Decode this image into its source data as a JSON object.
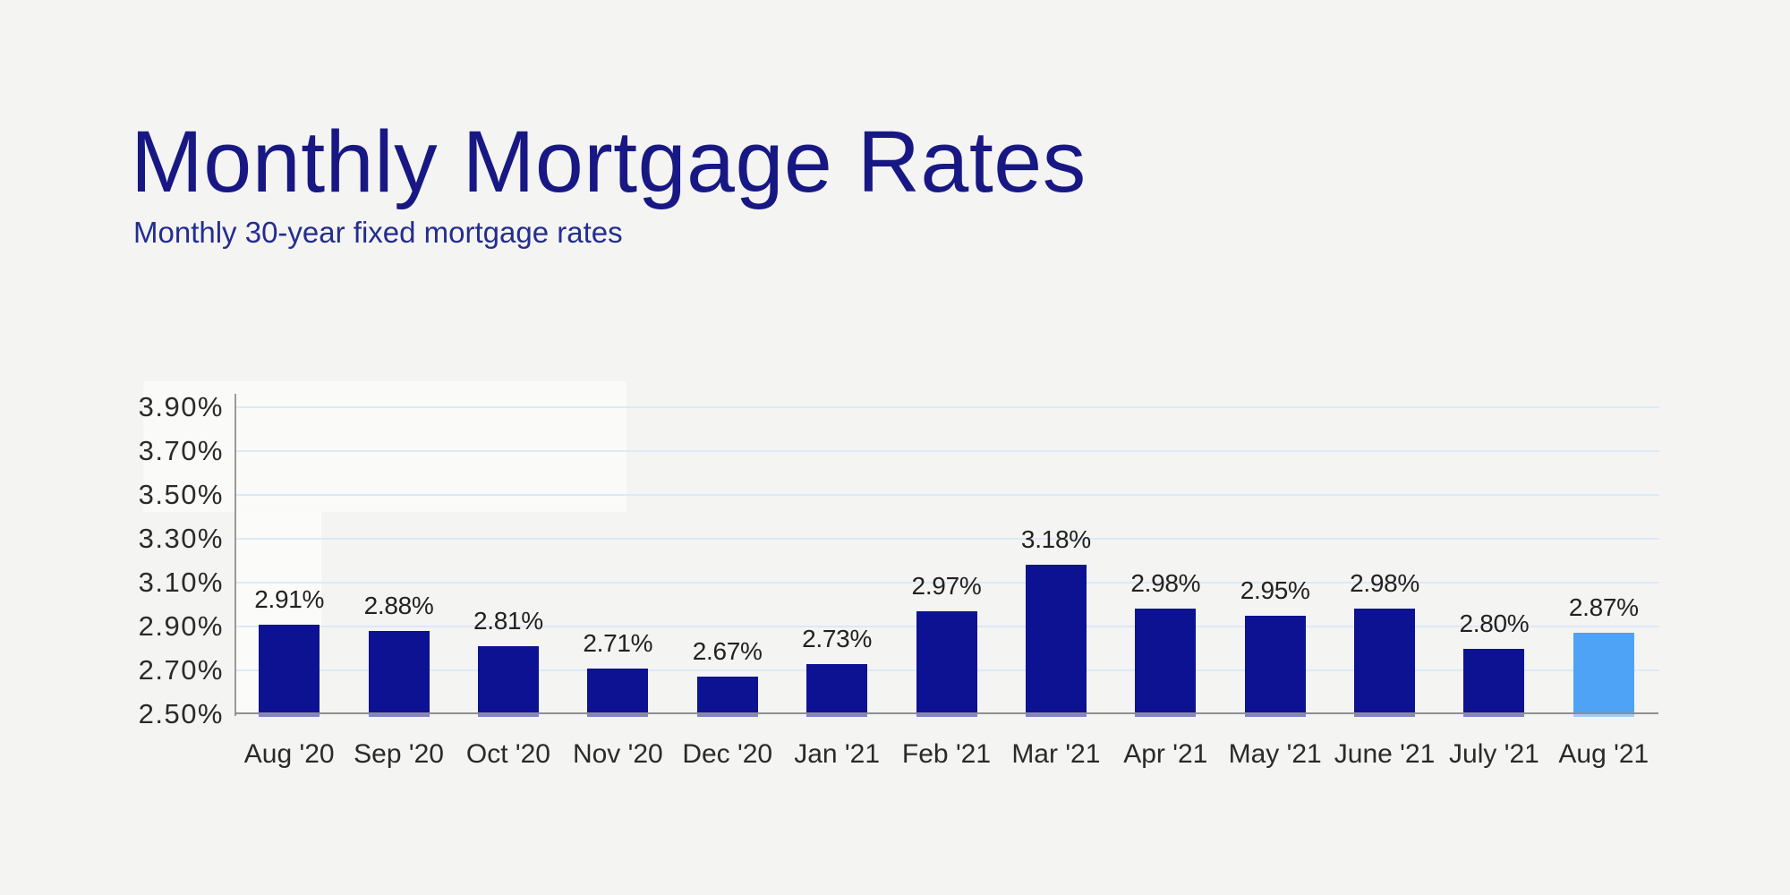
{
  "header": {
    "title": "Monthly Mortgage Rates",
    "subtitle": "Monthly 30-year fixed mortgage rates",
    "title_color": "#181884",
    "subtitle_color": "#242d90"
  },
  "chart_data": {
    "type": "bar",
    "title": "Monthly Mortgage Rates",
    "subtitle": "Monthly 30-year fixed mortgage rates",
    "categories": [
      "Aug '20",
      "Sep '20",
      "Oct '20",
      "Nov '20",
      "Dec '20",
      "Jan '21",
      "Feb '21",
      "Mar '21",
      "Apr '21",
      "May '21",
      "June '21",
      "July '21",
      "Aug '21"
    ],
    "values": [
      2.91,
      2.88,
      2.81,
      2.71,
      2.67,
      2.73,
      2.97,
      3.18,
      2.98,
      2.95,
      2.98,
      2.8,
      2.87
    ],
    "value_labels": [
      "2.91%",
      "2.88%",
      "2.81%",
      "2.71%",
      "2.67%",
      "2.73%",
      "2.97%",
      "3.18%",
      "2.98%",
      "2.95%",
      "2.98%",
      "2.80%",
      "2.87%"
    ],
    "yticks": [
      "3.90%",
      "3.70%",
      "3.50%",
      "3.30%",
      "3.10%",
      "2.90%",
      "2.70%",
      "2.50%"
    ],
    "ylim": [
      2.5,
      3.9
    ],
    "ytick_step": 0.2,
    "xlabel": "",
    "ylabel": "",
    "grid": "horizontal",
    "legend": "none",
    "bar_color": "#0d1292",
    "highlight_color": "#4fa3f6",
    "highlight_index": 12,
    "highlighted_category": "Aug '21",
    "gridline_color": "#dce9f8",
    "axis_color": "#9a9a9a",
    "baseline_color": "#8f8f8f",
    "tick_label_color": "#2a2a2a",
    "value_label_color": "#222222",
    "background_color": "#f4f4f2"
  }
}
